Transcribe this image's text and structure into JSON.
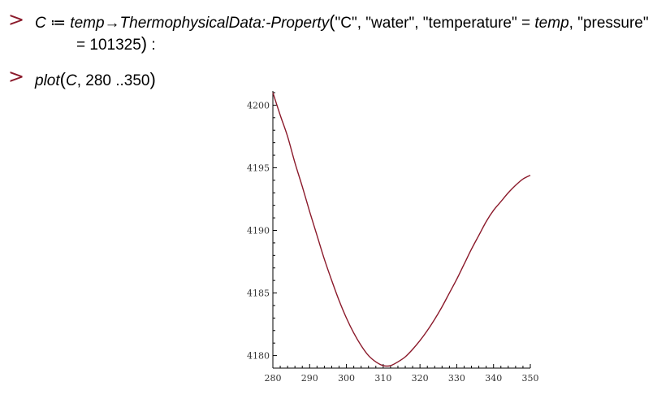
{
  "worksheet": {
    "prompt_symbol": ">",
    "input1": {
      "lhs": "C",
      "assign": "≔",
      "param": "temp",
      "arrow": "→",
      "func": "ThermophysicalData:-Property",
      "args_line1": "\"C\", \"water\", \"temperature\" = ",
      "arg_temp": "temp",
      "args_line1_end": ", \"pressure\"",
      "args_line2": "= 101325",
      "terminator": " :"
    },
    "input2": {
      "func": "plot",
      "arg_C": "C",
      "range": ", 280 ..350"
    }
  },
  "chart_data": {
    "type": "line",
    "title": "",
    "xlabel": "",
    "ylabel": "",
    "xlim": [
      280,
      350
    ],
    "ylim": [
      4179,
      4201
    ],
    "x_ticks": [
      280,
      290,
      300,
      310,
      320,
      330,
      340,
      350
    ],
    "y_ticks": [
      4180,
      4185,
      4190,
      4195,
      4200
    ],
    "grid": false,
    "series": [
      {
        "color": "#8b1a2b",
        "x": [
          280,
          282,
          284,
          286,
          288,
          290,
          292,
          294,
          296,
          298,
          300,
          302,
          304,
          306,
          308,
          310,
          312,
          314,
          316,
          318,
          320,
          322,
          324,
          326,
          328,
          330,
          332,
          334,
          336,
          338,
          340,
          342,
          344,
          346,
          348,
          350
        ],
        "y": [
          4201.0,
          4199.2,
          4197.5,
          4195.4,
          4193.5,
          4191.5,
          4189.6,
          4187.7,
          4186.0,
          4184.4,
          4183.0,
          4181.8,
          4180.8,
          4180.0,
          4179.5,
          4179.2,
          4179.2,
          4179.5,
          4179.9,
          4180.5,
          4181.2,
          4182.0,
          4182.9,
          4183.9,
          4185.0,
          4186.1,
          4187.3,
          4188.5,
          4189.6,
          4190.7,
          4191.6,
          4192.3,
          4193.0,
          4193.6,
          4194.1,
          4194.4
        ]
      }
    ]
  }
}
